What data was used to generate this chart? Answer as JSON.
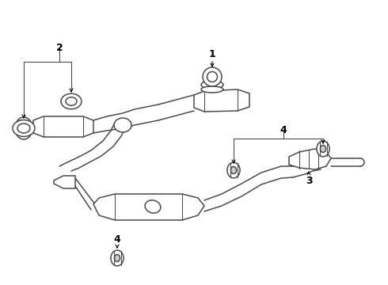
{
  "bg_color": "#ffffff",
  "line_color": "#4a4a4a",
  "label_color": "#000000",
  "fig_width": 4.9,
  "fig_height": 3.6,
  "dpi": 100
}
